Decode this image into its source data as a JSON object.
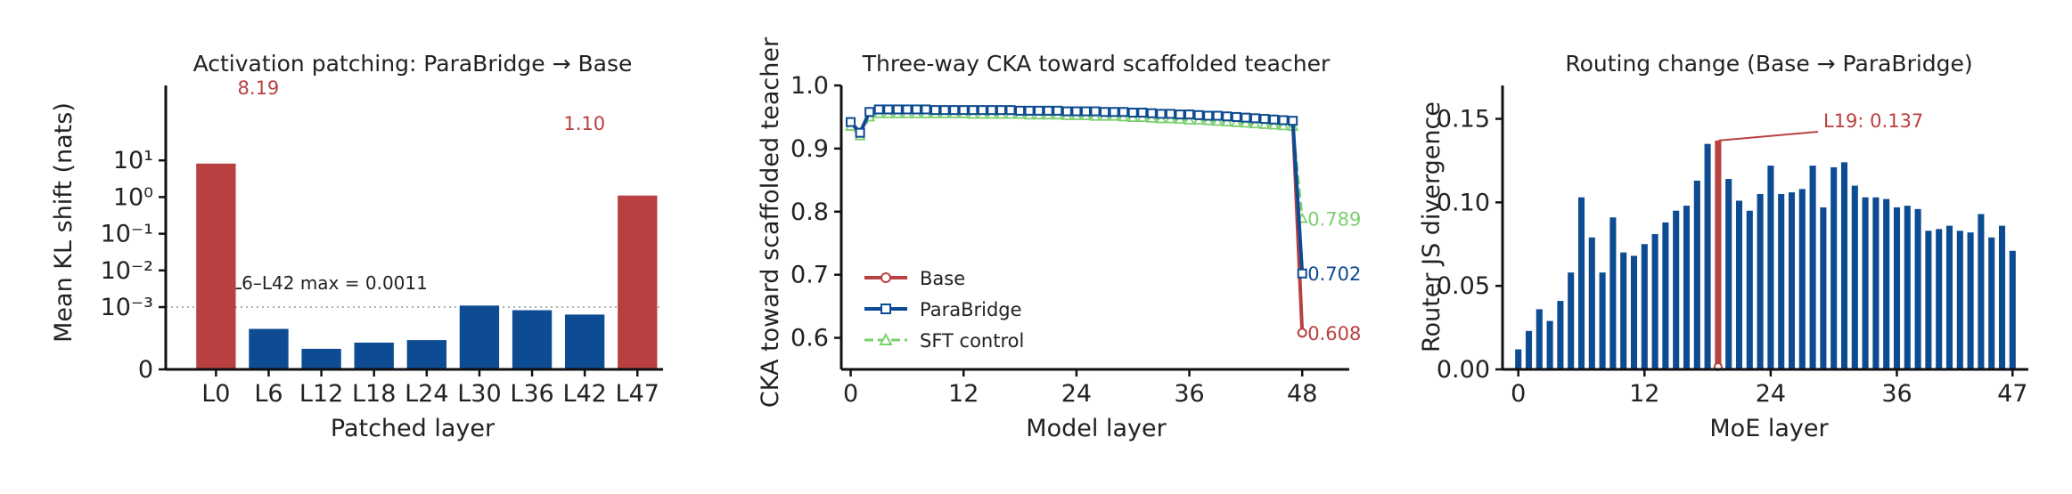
{
  "colors": {
    "base": "#b94040",
    "parabridge": "#0d4b92",
    "sft": "#7ccf71",
    "ink": "#222222"
  },
  "chart_data": [
    {
      "type": "bar",
      "title": "Activation patching: ParaBridge → Base",
      "xlabel": "Patched layer",
      "ylabel": "Mean KL shift (nats)",
      "yscale": "symlog",
      "ytick_labels": [
        "0",
        "10⁻³",
        "10⁻²",
        "10⁻¹",
        "10⁰",
        "10¹"
      ],
      "categories": [
        "L0",
        "L6",
        "L12",
        "L18",
        "L24",
        "L30",
        "L36",
        "L42",
        "L47"
      ],
      "values": [
        8.19,
        0.00065,
        0.00033,
        0.00043,
        0.00047,
        0.0011,
        0.00095,
        0.00088,
        1.1
      ],
      "highlight": [
        "L0",
        "L47"
      ],
      "value_labels": [
        {
          "category": "L0",
          "text": "8.19"
        },
        {
          "category": "L47",
          "text": "1.10"
        }
      ],
      "reference_line": {
        "y": 0.0011,
        "style": "dotted",
        "label": "L6–L42 max = 0.0011"
      }
    },
    {
      "type": "line",
      "title": "Three-way CKA toward scaffolded teacher",
      "xlabel": "Model layer",
      "ylabel": "CKA toward scaffolded teacher",
      "xlim": [
        -1,
        53
      ],
      "ylim": [
        0.55,
        1.0
      ],
      "xticks": [
        0,
        12,
        24,
        36,
        48
      ],
      "yticks": [
        0.6,
        0.7,
        0.8,
        0.9,
        1.0
      ],
      "legend_position": "lower-left",
      "series": [
        {
          "name": "Base",
          "color_key": "base",
          "marker": "circle",
          "x": [
            0,
            1,
            2,
            3,
            4,
            5,
            6,
            7,
            8,
            9,
            10,
            11,
            12,
            13,
            14,
            15,
            16,
            17,
            18,
            19,
            20,
            21,
            22,
            23,
            24,
            25,
            26,
            27,
            28,
            29,
            30,
            31,
            32,
            33,
            34,
            35,
            36,
            37,
            38,
            39,
            40,
            41,
            42,
            43,
            44,
            45,
            46,
            47,
            48
          ],
          "y": [
            0.942,
            0.925,
            0.958,
            0.962,
            0.962,
            0.962,
            0.962,
            0.962,
            0.962,
            0.961,
            0.961,
            0.961,
            0.961,
            0.961,
            0.961,
            0.961,
            0.961,
            0.961,
            0.96,
            0.96,
            0.96,
            0.96,
            0.96,
            0.959,
            0.959,
            0.959,
            0.959,
            0.958,
            0.958,
            0.958,
            0.957,
            0.957,
            0.956,
            0.955,
            0.955,
            0.954,
            0.954,
            0.953,
            0.952,
            0.952,
            0.951,
            0.95,
            0.949,
            0.948,
            0.947,
            0.946,
            0.945,
            0.944,
            0.608
          ],
          "end_label": "0.608"
        },
        {
          "name": "ParaBridge",
          "color_key": "parabridge",
          "marker": "square",
          "x": [
            0,
            1,
            2,
            3,
            4,
            5,
            6,
            7,
            8,
            9,
            10,
            11,
            12,
            13,
            14,
            15,
            16,
            17,
            18,
            19,
            20,
            21,
            22,
            23,
            24,
            25,
            26,
            27,
            28,
            29,
            30,
            31,
            32,
            33,
            34,
            35,
            36,
            37,
            38,
            39,
            40,
            41,
            42,
            43,
            44,
            45,
            46,
            47,
            48
          ],
          "y": [
            0.942,
            0.925,
            0.958,
            0.962,
            0.962,
            0.962,
            0.962,
            0.962,
            0.962,
            0.961,
            0.961,
            0.961,
            0.961,
            0.961,
            0.961,
            0.961,
            0.961,
            0.961,
            0.96,
            0.96,
            0.96,
            0.96,
            0.96,
            0.959,
            0.959,
            0.959,
            0.959,
            0.958,
            0.958,
            0.958,
            0.957,
            0.957,
            0.956,
            0.955,
            0.955,
            0.954,
            0.954,
            0.953,
            0.952,
            0.952,
            0.951,
            0.95,
            0.949,
            0.948,
            0.947,
            0.946,
            0.945,
            0.944,
            0.702
          ],
          "end_label": "0.702"
        },
        {
          "name": "SFT control",
          "color_key": "sft",
          "marker": "triangle",
          "dashed": true,
          "x": [
            0,
            1,
            2,
            3,
            4,
            5,
            6,
            7,
            8,
            9,
            10,
            11,
            12,
            13,
            14,
            15,
            16,
            17,
            18,
            19,
            20,
            21,
            22,
            23,
            24,
            25,
            26,
            27,
            28,
            29,
            30,
            31,
            32,
            33,
            34,
            35,
            36,
            37,
            38,
            39,
            40,
            41,
            42,
            43,
            44,
            45,
            46,
            47,
            48
          ],
          "y": [
            0.935,
            0.92,
            0.95,
            0.955,
            0.955,
            0.955,
            0.955,
            0.955,
            0.955,
            0.955,
            0.955,
            0.955,
            0.955,
            0.954,
            0.954,
            0.954,
            0.954,
            0.954,
            0.954,
            0.953,
            0.953,
            0.953,
            0.953,
            0.952,
            0.952,
            0.952,
            0.951,
            0.951,
            0.951,
            0.95,
            0.949,
            0.949,
            0.948,
            0.947,
            0.947,
            0.946,
            0.945,
            0.945,
            0.944,
            0.943,
            0.942,
            0.941,
            0.94,
            0.939,
            0.938,
            0.937,
            0.936,
            0.935,
            0.789
          ],
          "end_label": "0.789"
        }
      ]
    },
    {
      "type": "bar",
      "title": "Routing change (Base → ParaBridge)",
      "xlabel": "MoE layer",
      "ylabel": "Router JS divergence",
      "xlim": [
        -1.5,
        48.5
      ],
      "ylim": [
        0,
        0.17
      ],
      "xticks": [
        0,
        12,
        24,
        36,
        47
      ],
      "yticks": [
        0.0,
        0.05,
        0.1,
        0.15
      ],
      "ytick_labels": [
        "0.00",
        "0.05",
        "0.10",
        "0.15"
      ],
      "x": [
        0,
        1,
        2,
        3,
        4,
        5,
        6,
        7,
        8,
        9,
        10,
        11,
        12,
        13,
        14,
        15,
        16,
        17,
        18,
        19,
        20,
        21,
        22,
        23,
        24,
        25,
        26,
        27,
        28,
        29,
        30,
        31,
        32,
        33,
        34,
        35,
        36,
        37,
        38,
        39,
        40,
        41,
        42,
        43,
        44,
        45,
        46,
        47
      ],
      "values": [
        0.012,
        0.023,
        0.036,
        0.029,
        0.041,
        0.058,
        0.103,
        0.079,
        0.058,
        0.091,
        0.07,
        0.068,
        0.075,
        0.081,
        0.088,
        0.095,
        0.098,
        0.113,
        0.135,
        0.137,
        0.114,
        0.101,
        0.095,
        0.105,
        0.122,
        0.105,
        0.106,
        0.108,
        0.122,
        0.097,
        0.121,
        0.124,
        0.11,
        0.103,
        0.103,
        0.102,
        0.097,
        0.098,
        0.096,
        0.083,
        0.084,
        0.086,
        0.083,
        0.082,
        0.093,
        0.079,
        0.086,
        0.071
      ],
      "highlight_index": 19,
      "annotation": {
        "text": "L19: 0.137"
      }
    }
  ]
}
